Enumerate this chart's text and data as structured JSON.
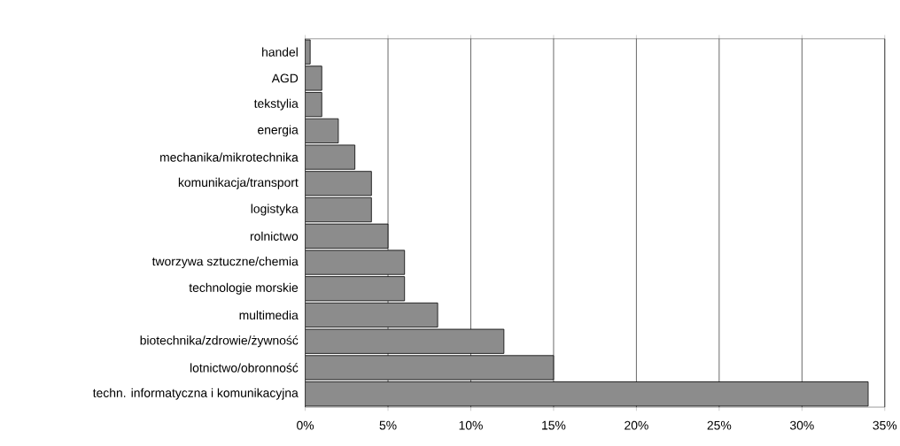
{
  "chart_data": {
    "type": "bar",
    "orientation": "horizontal",
    "categories": [
      "handel",
      "AGD",
      "tekstylia",
      "energia",
      "mechanika/mikrotechnika",
      "komunikacja/transport",
      "logistyka",
      "rolnictwo",
      "tworzywa sztuczne/chemia",
      "technologie morskie",
      "multimedia",
      "biotechnika/zdrowie/żywność",
      "lotnictwo/obronność",
      "techn. informatyczna i komunikacyjna"
    ],
    "values": [
      0.3,
      1,
      1,
      2,
      3,
      4,
      4,
      5,
      6,
      6,
      8,
      12,
      15,
      34
    ],
    "color": "#8c8c8c",
    "xlim": [
      0,
      35
    ],
    "xticks": [
      {
        "value": 0,
        "label": "0%"
      },
      {
        "value": 5,
        "label": "5%"
      },
      {
        "value": 10,
        "label": "10%"
      },
      {
        "value": 15,
        "label": "15%"
      },
      {
        "value": 20,
        "label": "20%"
      },
      {
        "value": 25,
        "label": "25%"
      },
      {
        "value": 30,
        "label": "30%"
      },
      {
        "value": 35,
        "label": "35%"
      }
    ],
    "grid": "x"
  }
}
